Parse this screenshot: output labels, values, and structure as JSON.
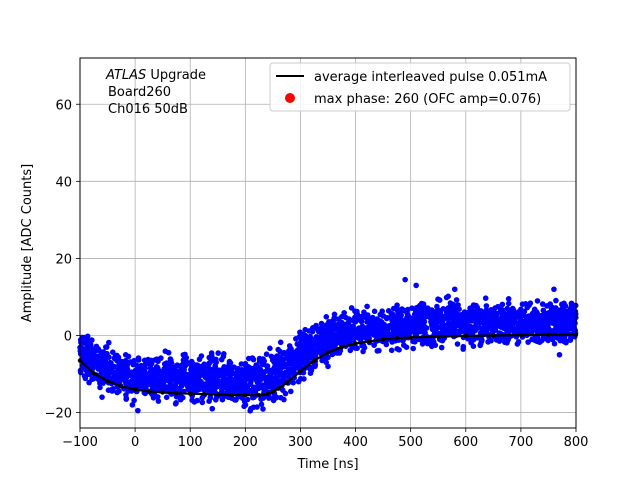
{
  "chart_data": {
    "type": "scatter",
    "title": "",
    "xlabel": "Time [ns]",
    "ylabel": "Amplitude [ADC Counts]",
    "xlim": [
      -100,
      800
    ],
    "ylim": [
      -24,
      72
    ],
    "xticks": [
      -100,
      0,
      100,
      200,
      300,
      400,
      500,
      600,
      700,
      800
    ],
    "yticks": [
      -20,
      0,
      20,
      40,
      60
    ],
    "grid": true,
    "legend_position": "top-right",
    "annotation": {
      "line1_italic": "ATLAS",
      "line1_rest": " Upgrade",
      "line2": "Board260",
      "line3": "Ch016 50dB"
    },
    "colors": {
      "scatter": "#0000ff",
      "average": "#000000",
      "max_phase": "#ff0000"
    },
    "series": [
      {
        "name": "average interleaved pulse 0.051mA",
        "kind": "line",
        "x": [
          -100,
          -75,
          -50,
          -25,
          0,
          25,
          50,
          75,
          100,
          125,
          150,
          175,
          200,
          225,
          240,
          250,
          260,
          275,
          300,
          325,
          350,
          375,
          400,
          425,
          450,
          475,
          500,
          550,
          600,
          650,
          700,
          750,
          800
        ],
        "y": [
          -6.5,
          -9.8,
          -11.8,
          -13.2,
          -14.0,
          -14.5,
          -14.8,
          -15.0,
          -15.1,
          -15.2,
          -15.3,
          -15.4,
          -15.5,
          -15.5,
          -15.2,
          -14.6,
          -13.8,
          -12.3,
          -9.3,
          -6.5,
          -4.4,
          -3.0,
          -2.1,
          -1.5,
          -1.0,
          -0.7,
          -0.5,
          -0.3,
          -0.1,
          0.0,
          0.1,
          0.2,
          0.2
        ]
      },
      {
        "name": "max phase: 260 (OFC amp=0.076)",
        "kind": "marker",
        "x": [],
        "y": []
      },
      {
        "name": "",
        "kind": "scatter",
        "band_x": [
          -100,
          -75,
          -50,
          -25,
          0,
          50,
          100,
          150,
          200,
          240,
          250,
          275,
          300,
          325,
          350,
          375,
          400,
          450,
          500,
          550,
          600,
          650,
          700,
          750,
          800
        ],
        "band_low": [
          -11,
          -14,
          -16,
          -17,
          -18,
          -18,
          -18.5,
          -18.5,
          -19,
          -19,
          -18,
          -16,
          -13,
          -10,
          -8,
          -6.5,
          -5.5,
          -4.5,
          -4,
          -4,
          -3.5,
          -3.5,
          -3.5,
          -3.5,
          -3.5
        ],
        "band_high": [
          3,
          0,
          -2,
          -3,
          -4,
          -4,
          -4,
          -4,
          -4,
          -4,
          -3,
          -1,
          2,
          4,
          6,
          7,
          7.5,
          8.5,
          9.5,
          10,
          10,
          10,
          10,
          10,
          10
        ]
      }
    ]
  }
}
